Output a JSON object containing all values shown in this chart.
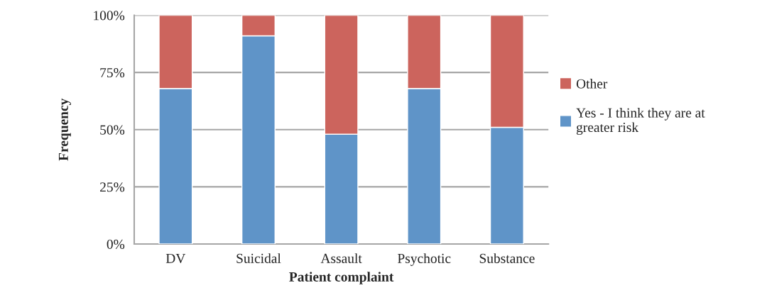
{
  "chart_data": {
    "type": "bar",
    "stacked": true,
    "xlabel": "Patient complaint",
    "ylabel": "Frequency",
    "categories": [
      "DV",
      "Suicidal",
      "Assault",
      "Psychotic",
      "Substance"
    ],
    "series": [
      {
        "name": "Yes - I think they are at greater risk",
        "color": "#5f94c8",
        "values": [
          68,
          91,
          48,
          68,
          51
        ]
      },
      {
        "name": "Other",
        "color": "#cc645d",
        "values": [
          32,
          9,
          52,
          32,
          49
        ]
      }
    ],
    "ylim": [
      0,
      100
    ],
    "yticks": [
      {
        "value": 0,
        "label": "0%"
      },
      {
        "value": 25,
        "label": "25%"
      },
      {
        "value": 50,
        "label": "50%"
      },
      {
        "value": 75,
        "label": "75%"
      },
      {
        "value": 100,
        "label": "100%"
      }
    ],
    "grid": "y",
    "legend": "right"
  }
}
